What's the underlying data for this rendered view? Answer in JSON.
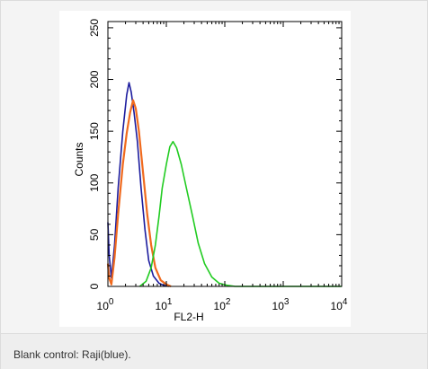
{
  "caption": "Blank control: Raji(blue).",
  "chart_data": {
    "type": "line",
    "xlabel": "FL2-H",
    "ylabel": "Counts",
    "x_scale": "log",
    "xlim": [
      1,
      10000
    ],
    "ylim": [
      0,
      256
    ],
    "x_ticks": [
      {
        "value": 1,
        "base": "10",
        "exp": "0"
      },
      {
        "value": 10,
        "base": "10",
        "exp": "1"
      },
      {
        "value": 100,
        "base": "10",
        "exp": "2"
      },
      {
        "value": 1000,
        "base": "10",
        "exp": "3"
      },
      {
        "value": 10000,
        "base": "10",
        "exp": "4"
      }
    ],
    "y_ticks": [
      0,
      50,
      100,
      150,
      200,
      250
    ],
    "grid": false,
    "legend": "none",
    "series": [
      {
        "color": "#1c1c9e",
        "points": [
          [
            1.0,
            62
          ],
          [
            1.05,
            30
          ],
          [
            1.15,
            8
          ],
          [
            1.3,
            40
          ],
          [
            1.5,
            95
          ],
          [
            1.8,
            150
          ],
          [
            2.1,
            185
          ],
          [
            2.3,
            197
          ],
          [
            2.5,
            188
          ],
          [
            2.8,
            168
          ],
          [
            3.2,
            140
          ],
          [
            3.7,
            95
          ],
          [
            4.3,
            55
          ],
          [
            5.0,
            25
          ],
          [
            6.0,
            10
          ],
          [
            7.5,
            3
          ],
          [
            9.0,
            1
          ],
          [
            11.0,
            0
          ]
        ]
      },
      {
        "color": "#f06a1e",
        "points": [
          [
            1.0,
            22
          ],
          [
            1.05,
            8
          ],
          [
            1.15,
            2
          ],
          [
            1.3,
            28
          ],
          [
            1.5,
            70
          ],
          [
            1.8,
            118
          ],
          [
            2.1,
            148
          ],
          [
            2.4,
            168
          ],
          [
            2.7,
            180
          ],
          [
            3.0,
            172
          ],
          [
            3.4,
            150
          ],
          [
            4.0,
            110
          ],
          [
            4.7,
            70
          ],
          [
            5.5,
            40
          ],
          [
            6.5,
            18
          ],
          [
            8.0,
            6
          ],
          [
            10.0,
            2
          ],
          [
            12.0,
            0
          ]
        ]
      },
      {
        "color": "#22cc22",
        "points": [
          [
            3.5,
            0
          ],
          [
            4.5,
            5
          ],
          [
            5.5,
            18
          ],
          [
            6.5,
            40
          ],
          [
            7.5,
            68
          ],
          [
            8.5,
            95
          ],
          [
            10.0,
            118
          ],
          [
            11.5,
            135
          ],
          [
            13.0,
            140
          ],
          [
            15.0,
            134
          ],
          [
            18.0,
            118
          ],
          [
            22.0,
            95
          ],
          [
            28.0,
            68
          ],
          [
            35.0,
            42
          ],
          [
            45.0,
            22
          ],
          [
            60.0,
            9
          ],
          [
            80.0,
            3
          ],
          [
            110.0,
            1
          ],
          [
            150.0,
            0
          ],
          [
            10000.0,
            0
          ]
        ]
      }
    ]
  }
}
